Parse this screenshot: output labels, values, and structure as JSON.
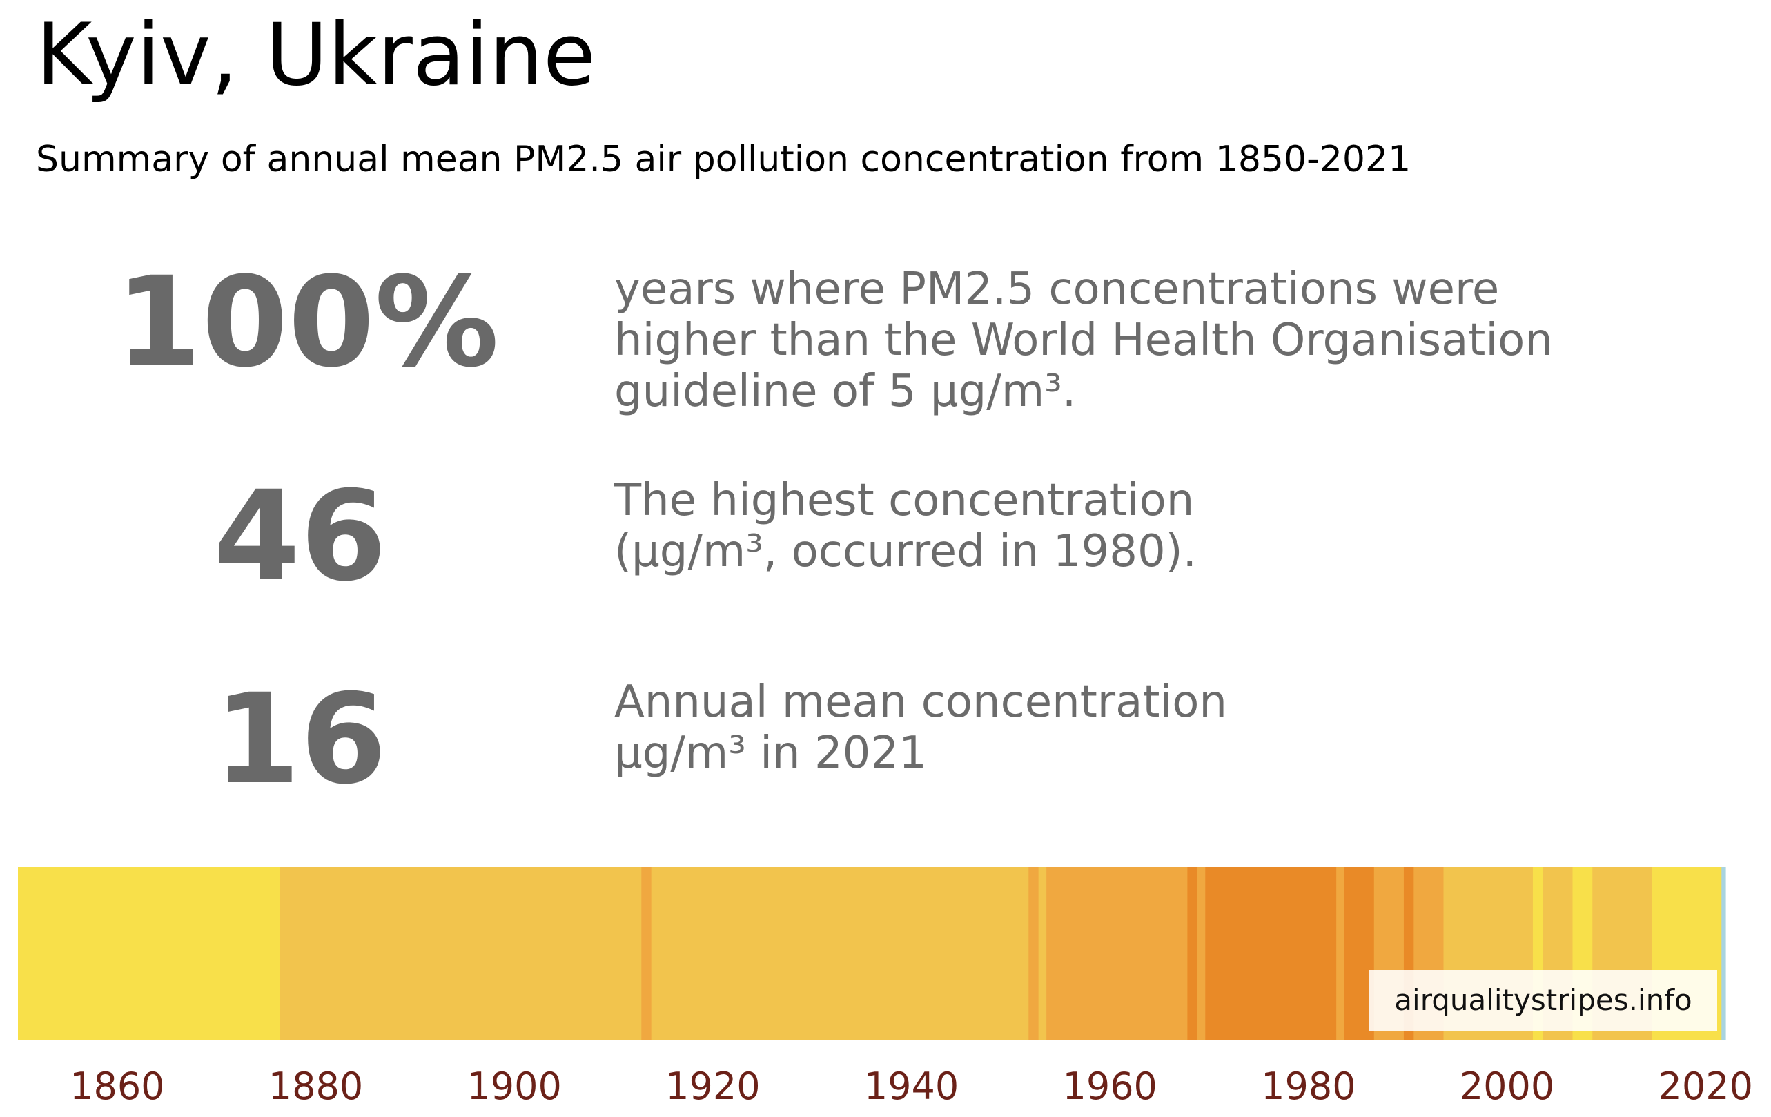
{
  "header": {
    "title": "Kyiv, Ukraine",
    "subtitle": "Summary of annual mean PM2.5 air pollution concentration from 1850-2021"
  },
  "stats": [
    {
      "value": "100%",
      "description": [
        "years where PM2.5 concentrations were",
        "higher than the World Health Organisation",
        "guideline of 5 µg/m³."
      ]
    },
    {
      "value": "46",
      "description": [
        "The highest concentration",
        "(µg/m³, occurred in 1980)."
      ]
    },
    {
      "value": "16",
      "description": [
        "Annual mean concentration",
        "µg/m³ in 2021"
      ]
    }
  ],
  "watermark": "airqualitystripes.info",
  "colors": {
    "text_gray": "#696969",
    "tick_color": "#6b2118"
  },
  "chart_data": {
    "type": "heatmap",
    "xlim": [
      1850,
      2022
    ],
    "xticks": [
      1860,
      1880,
      1900,
      1920,
      1940,
      1960,
      1980,
      2000,
      2020
    ],
    "stripes": [
      {
        "start": 1850,
        "end": 1876.4,
        "color": "#f8e04a"
      },
      {
        "start": 1876.4,
        "end": 1912.8,
        "color": "#f2c44d"
      },
      {
        "start": 1912.8,
        "end": 1913.8,
        "color": "#f0a840"
      },
      {
        "start": 1913.8,
        "end": 1951.8,
        "color": "#f2c44d"
      },
      {
        "start": 1951.8,
        "end": 1952.8,
        "color": "#f0a840"
      },
      {
        "start": 1952.8,
        "end": 1953.6,
        "color": "#f2c44d"
      },
      {
        "start": 1953.6,
        "end": 1967.8,
        "color": "#f0a840"
      },
      {
        "start": 1967.8,
        "end": 1968.8,
        "color": "#e98a27"
      },
      {
        "start": 1968.8,
        "end": 1969.6,
        "color": "#f0a840"
      },
      {
        "start": 1969.6,
        "end": 1982.8,
        "color": "#e98a27"
      },
      {
        "start": 1982.8,
        "end": 1983.6,
        "color": "#f0a840"
      },
      {
        "start": 1983.6,
        "end": 1986.6,
        "color": "#e98a27"
      },
      {
        "start": 1986.6,
        "end": 1989.6,
        "color": "#f0a840"
      },
      {
        "start": 1989.6,
        "end": 1990.6,
        "color": "#e98a27"
      },
      {
        "start": 1990.6,
        "end": 1993.6,
        "color": "#f0a840"
      },
      {
        "start": 1993.6,
        "end": 2002.6,
        "color": "#f2c44d"
      },
      {
        "start": 2002.6,
        "end": 2003.6,
        "color": "#f8e04a"
      },
      {
        "start": 2003.6,
        "end": 2006.6,
        "color": "#f2c44d"
      },
      {
        "start": 2006.6,
        "end": 2008.6,
        "color": "#f8e04a"
      },
      {
        "start": 2008.6,
        "end": 2014.6,
        "color": "#f2c44d"
      },
      {
        "start": 2014.6,
        "end": 2021.6,
        "color": "#f8e04a"
      },
      {
        "start": 2021.6,
        "end": 2022,
        "color": "#a9d4e0"
      }
    ]
  }
}
